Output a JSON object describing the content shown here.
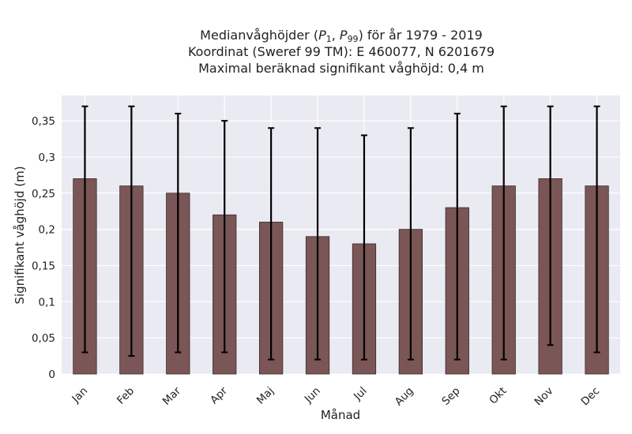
{
  "chart_data": {
    "type": "bar",
    "title": {
      "line1_prefix": "Medianvåghöjder (",
      "p_sym": "P",
      "p1_sub": "1",
      "p99_sub": "99",
      "line1_suffix": ") för år 1979 - 2019",
      "line2": "Koordinat (Sweref 99 TM): E 460077, N 6201679",
      "line3": "Maximal beräknad signifikant våghöjd: 0,4 m"
    },
    "xlabel": "Månad",
    "ylabel": "Signifikant våghöjd (m)",
    "categories": [
      "Jan",
      "Feb",
      "Mar",
      "Apr",
      "Maj",
      "Jun",
      "Jul",
      "Aug",
      "Sep",
      "Okt",
      "Nov",
      "Dec"
    ],
    "values": [
      0.27,
      0.26,
      0.25,
      0.22,
      0.21,
      0.19,
      0.18,
      0.2,
      0.23,
      0.26,
      0.27,
      0.26
    ],
    "error_low": [
      0.03,
      0.025,
      0.03,
      0.03,
      0.02,
      0.02,
      0.02,
      0.02,
      0.02,
      0.02,
      0.04,
      0.03
    ],
    "error_high": [
      0.37,
      0.37,
      0.36,
      0.35,
      0.34,
      0.34,
      0.33,
      0.34,
      0.36,
      0.37,
      0.37,
      0.37
    ],
    "yticks": [
      0,
      0.05,
      0.1,
      0.15,
      0.2,
      0.25,
      0.3,
      0.35
    ],
    "ytick_labels": [
      "0",
      "0,05",
      "0,1",
      "0,15",
      "0,2",
      "0,25",
      "0,3",
      "0,35"
    ],
    "ylim": [
      0,
      0.385
    ],
    "grid": true,
    "colors": {
      "bar": "#7a5656",
      "bar_edge": "#3a2a2a",
      "plot_bg": "#eaeaf2",
      "grid": "#ffffff",
      "error": "#000000"
    }
  }
}
